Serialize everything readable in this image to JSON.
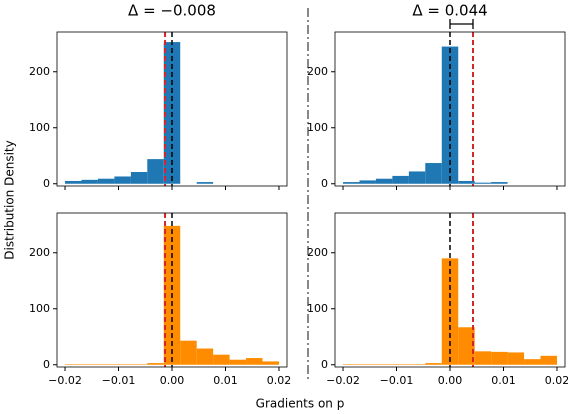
{
  "figure": {
    "xlabel": "Gradients on p",
    "ylabel": "Distribution Density"
  },
  "chart_data": [
    {
      "type": "histogram",
      "title": "Δ = −0.008",
      "color": "#1f77b4",
      "bins": [
        -0.02,
        -0.01692,
        -0.01385,
        -0.01077,
        -0.00769,
        -0.00462,
        -0.00154,
        0.00154,
        0.00462,
        0.00769,
        0.01077,
        0.01385,
        0.01692,
        0.02
      ],
      "values": [
        5,
        7,
        9,
        13,
        21,
        44,
        253,
        0,
        3,
        0,
        0,
        0,
        0
      ],
      "xlim": [
        -0.0215,
        0.0215
      ],
      "ylim": [
        -4,
        271
      ],
      "yticks": [
        0,
        100,
        200
      ],
      "xticks": [
        -0.02,
        -0.01,
        0,
        0.01,
        0.02
      ],
      "vlines": [
        {
          "value": -0.0013,
          "color": "#d62728"
        },
        {
          "value": 0,
          "color": "#000000"
        }
      ]
    },
    {
      "type": "histogram",
      "title": "Δ = 0.044",
      "color": "#1f77b4",
      "bins": [
        -0.02,
        -0.01692,
        -0.01385,
        -0.01077,
        -0.00769,
        -0.00462,
        -0.00154,
        0.00154,
        0.00462,
        0.00769,
        0.01077,
        0.01385,
        0.01692,
        0.02
      ],
      "values": [
        3,
        6,
        9,
        14,
        22,
        37,
        245,
        5,
        2,
        3,
        0,
        0,
        0
      ],
      "xlim": [
        -0.0215,
        0.0215
      ],
      "ylim": [
        -4,
        271
      ],
      "yticks": [
        0,
        100,
        200
      ],
      "xticks": [
        -0.02,
        -0.01,
        0,
        0.01,
        0.02
      ],
      "vlines": [
        {
          "value": 0,
          "color": "#000000"
        },
        {
          "value": 0.0043,
          "color": "#d62728"
        }
      ],
      "bracket": true
    },
    {
      "type": "histogram",
      "color": "#ff8c00",
      "bins": [
        -0.02,
        -0.01692,
        -0.01385,
        -0.01077,
        -0.00769,
        -0.00462,
        -0.00154,
        0.00154,
        0.00462,
        0.00769,
        0.01077,
        0.01385,
        0.01692,
        0.02
      ],
      "values": [
        1,
        1,
        1,
        1,
        1,
        3,
        248,
        43,
        29,
        18,
        9,
        12,
        6
      ],
      "xlim": [
        -0.0215,
        0.0215
      ],
      "ylim": [
        -4,
        271
      ],
      "yticks": [
        0,
        100,
        200
      ],
      "xticks": [
        {
          "value": -0.02,
          "label": "−0.02"
        },
        {
          "value": -0.01,
          "label": "−0.01"
        },
        {
          "value": 0,
          "label": "0.00"
        },
        {
          "value": 0.01,
          "label": "0.01"
        },
        {
          "value": 0.02,
          "label": "0.02"
        }
      ],
      "vlines": [
        {
          "value": -0.0013,
          "color": "#d62728"
        },
        {
          "value": 0,
          "color": "#000000"
        }
      ]
    },
    {
      "type": "histogram",
      "color": "#ff8c00",
      "bins": [
        -0.02,
        -0.01692,
        -0.01385,
        -0.01077,
        -0.00769,
        -0.00462,
        -0.00154,
        0.00154,
        0.00462,
        0.00769,
        0.01077,
        0.01385,
        0.01692,
        0.02
      ],
      "values": [
        1,
        1,
        1,
        1,
        1,
        3,
        190,
        67,
        24,
        23,
        22,
        10,
        16
      ],
      "xlim": [
        -0.0215,
        0.0215
      ],
      "ylim": [
        -4,
        271
      ],
      "yticks": [
        0,
        100,
        200
      ],
      "xticks": [
        {
          "value": -0.02,
          "label": "−0.02"
        },
        {
          "value": -0.01,
          "label": "−0.01"
        },
        {
          "value": 0,
          "label": "0.00"
        },
        {
          "value": 0.01,
          "label": "0.01"
        },
        {
          "value": 0.02,
          "label": "0.02"
        }
      ],
      "vlines": [
        {
          "value": 0,
          "color": "#000000"
        },
        {
          "value": 0.0043,
          "color": "#d62728"
        }
      ]
    }
  ]
}
